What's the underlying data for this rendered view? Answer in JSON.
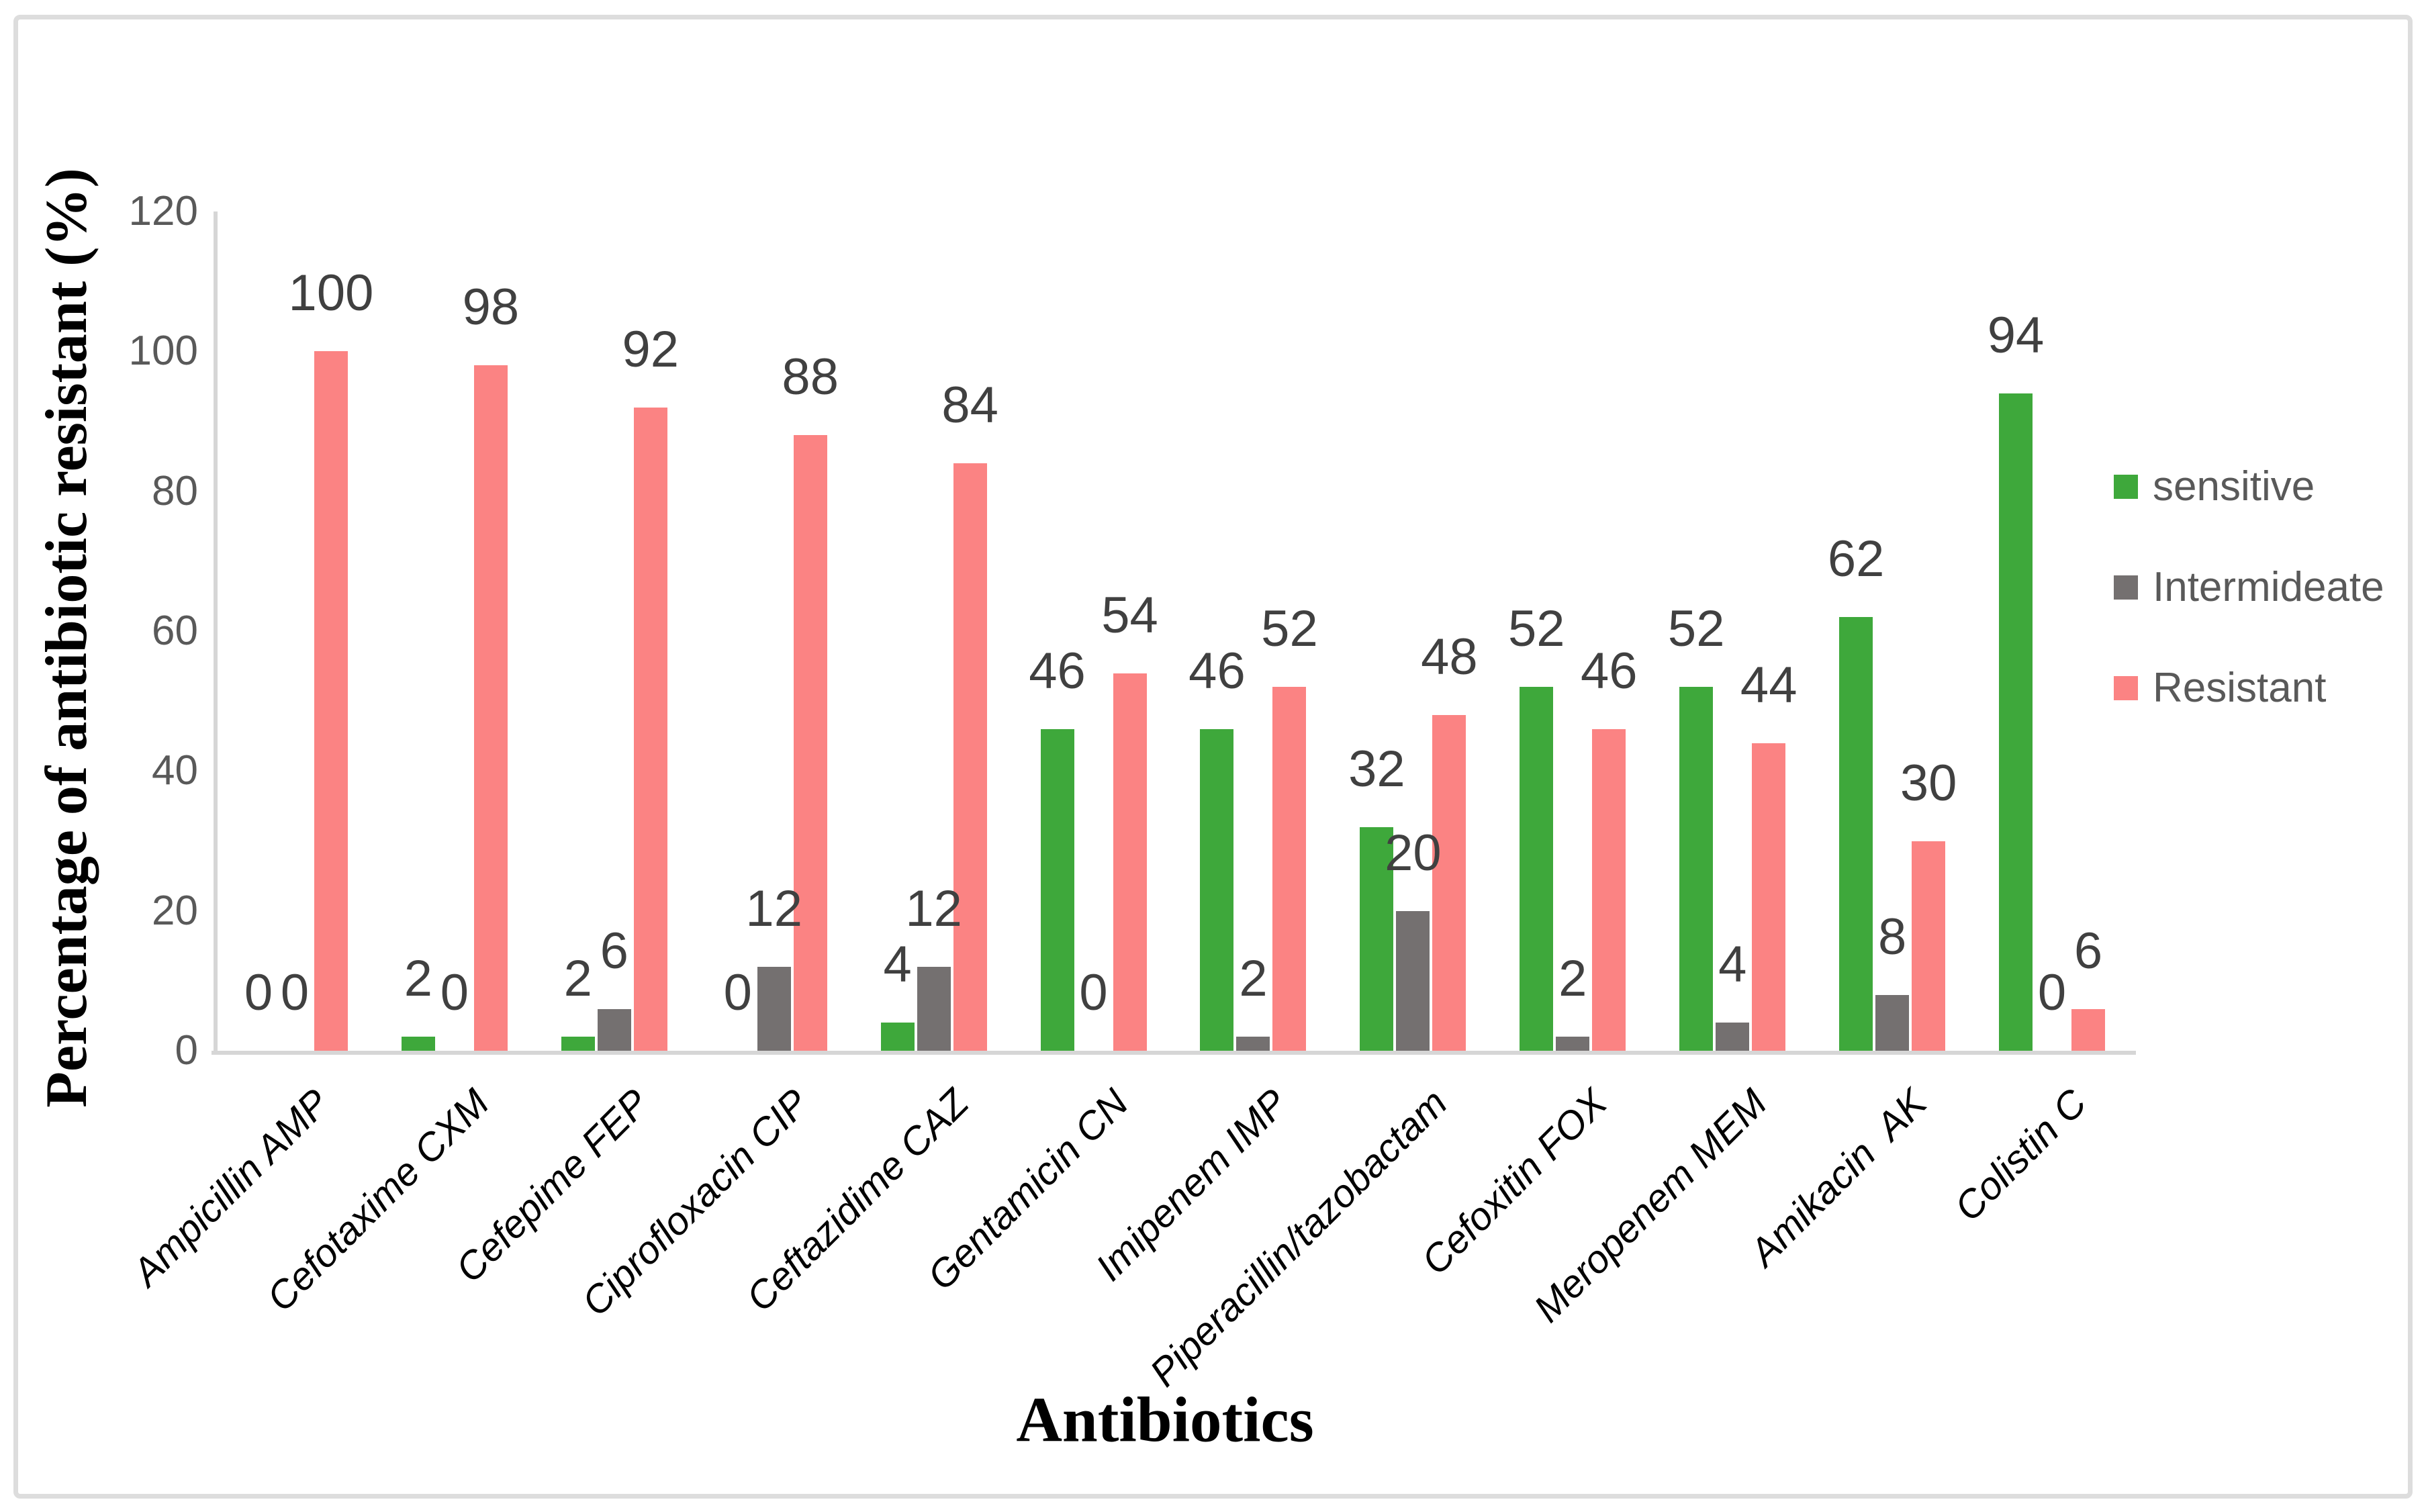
{
  "figure": {
    "background": "#ffffff"
  },
  "colors": {
    "border": "#dddddd",
    "axis_line": "#d6d6d6",
    "tick_label": "#595959",
    "value_label": "#404040",
    "category_label": "#000000",
    "legend_text": "#595959",
    "sensitive": "#3ea83b",
    "intermediate": "#747070",
    "resistant": "#fb8383"
  },
  "chart_data": {
    "type": "bar",
    "title": "",
    "xlabel": "Antibiotics",
    "ylabel": "Percentage of antibiotic resistant (%)",
    "ylim": [
      0,
      120
    ],
    "yticks": [
      0,
      20,
      40,
      60,
      80,
      100,
      120
    ],
    "grid": false,
    "legend_position": "right",
    "value_labels_shown": true,
    "categories": [
      "Ampicillin AMP",
      "Cefotaxime CXM",
      "Cefepime FEP",
      "Ciprofloxacin CIP",
      "Ceftazidime CAZ",
      "Gentamicin CN",
      "Imipenem IMP",
      "Piperacillin/tazobactam",
      "Cefoxitin FOX",
      "Meropenem MEM",
      "Amikacin  AK",
      "Colistin C"
    ],
    "series": [
      {
        "name": "sensitive",
        "color": "#3ea83b",
        "values": [
          0,
          2,
          2,
          0,
          4,
          46,
          46,
          32,
          52,
          52,
          62,
          94
        ]
      },
      {
        "name": "Intermideate",
        "color": "#747070",
        "values": [
          0,
          0,
          6,
          12,
          12,
          0,
          2,
          20,
          2,
          4,
          8,
          0
        ]
      },
      {
        "name": "Resistant",
        "color": "#fb8383",
        "values": [
          100,
          98,
          92,
          88,
          84,
          54,
          52,
          48,
          46,
          44,
          30,
          6
        ]
      }
    ]
  }
}
